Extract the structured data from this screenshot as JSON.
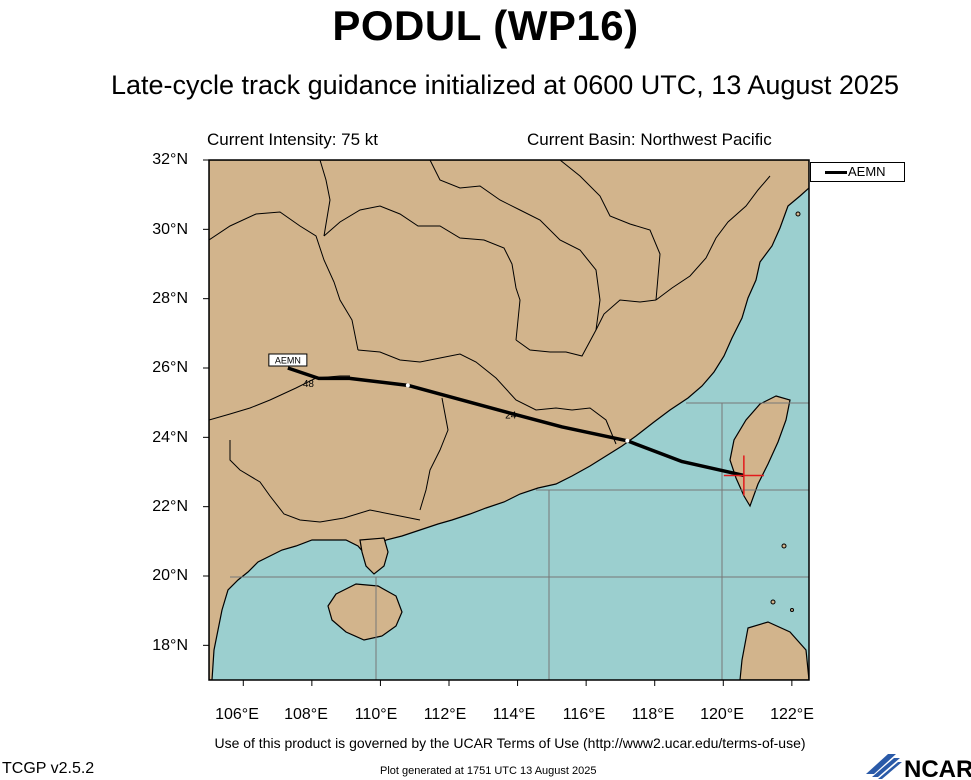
{
  "header": {
    "title": "PODUL (WP16)",
    "subtitle": "Late-cycle track guidance initialized at 0600 UTC, 13 August 2025",
    "current_intensity": "Current Intensity: 75 kt",
    "current_basin": "Current Basin: Northwest Pacific"
  },
  "axes": {
    "lat_labels": [
      "32°N",
      "30°N",
      "28°N",
      "26°N",
      "24°N",
      "22°N",
      "20°N",
      "18°N"
    ],
    "lon_labels": [
      "106°E",
      "108°E",
      "110°E",
      "112°E",
      "114°E",
      "116°E",
      "118°E",
      "120°E",
      "122°E"
    ]
  },
  "map": {
    "lon_range": [
      105.0,
      122.5
    ],
    "lat_range": [
      17.0,
      32.0
    ],
    "colors": {
      "ocean": "#9bcfcf",
      "land": "#d2b48c",
      "grid": "#777777",
      "track": "#000000",
      "current_position": "#e31a1c"
    }
  },
  "track": {
    "model": "AEMN",
    "points": [
      {
        "lon": 120.6,
        "lat": 22.9
      },
      {
        "lon": 118.8,
        "lat": 23.3
      },
      {
        "lon": 117.2,
        "lat": 23.9
      },
      {
        "lon": 115.3,
        "lat": 24.3
      },
      {
        "lon": 113.4,
        "lat": 24.8
      },
      {
        "lon": 110.8,
        "lat": 25.5
      },
      {
        "lon": 109.1,
        "lat": 25.7
      },
      {
        "lon": 108.2,
        "lat": 25.7
      },
      {
        "lon": 107.3,
        "lat": 26.0
      }
    ],
    "hour_labels": [
      {
        "text": "24",
        "lon": 113.8,
        "lat": 24.55
      },
      {
        "text": "48",
        "lon": 107.9,
        "lat": 25.45
      }
    ],
    "end_label": "AEMN",
    "current_position": {
      "lon": 120.6,
      "lat": 22.9
    }
  },
  "legend": {
    "entries": [
      "AEMN"
    ]
  },
  "footer": {
    "terms": "Use of this product is governed by the UCAR Terms of Use (http://www2.ucar.edu/terms-of-use)",
    "version": "TCGP v2.5.2",
    "generated": "Plot generated at 1751 UTC   13 August 2025",
    "logo_text": "NCAR"
  }
}
